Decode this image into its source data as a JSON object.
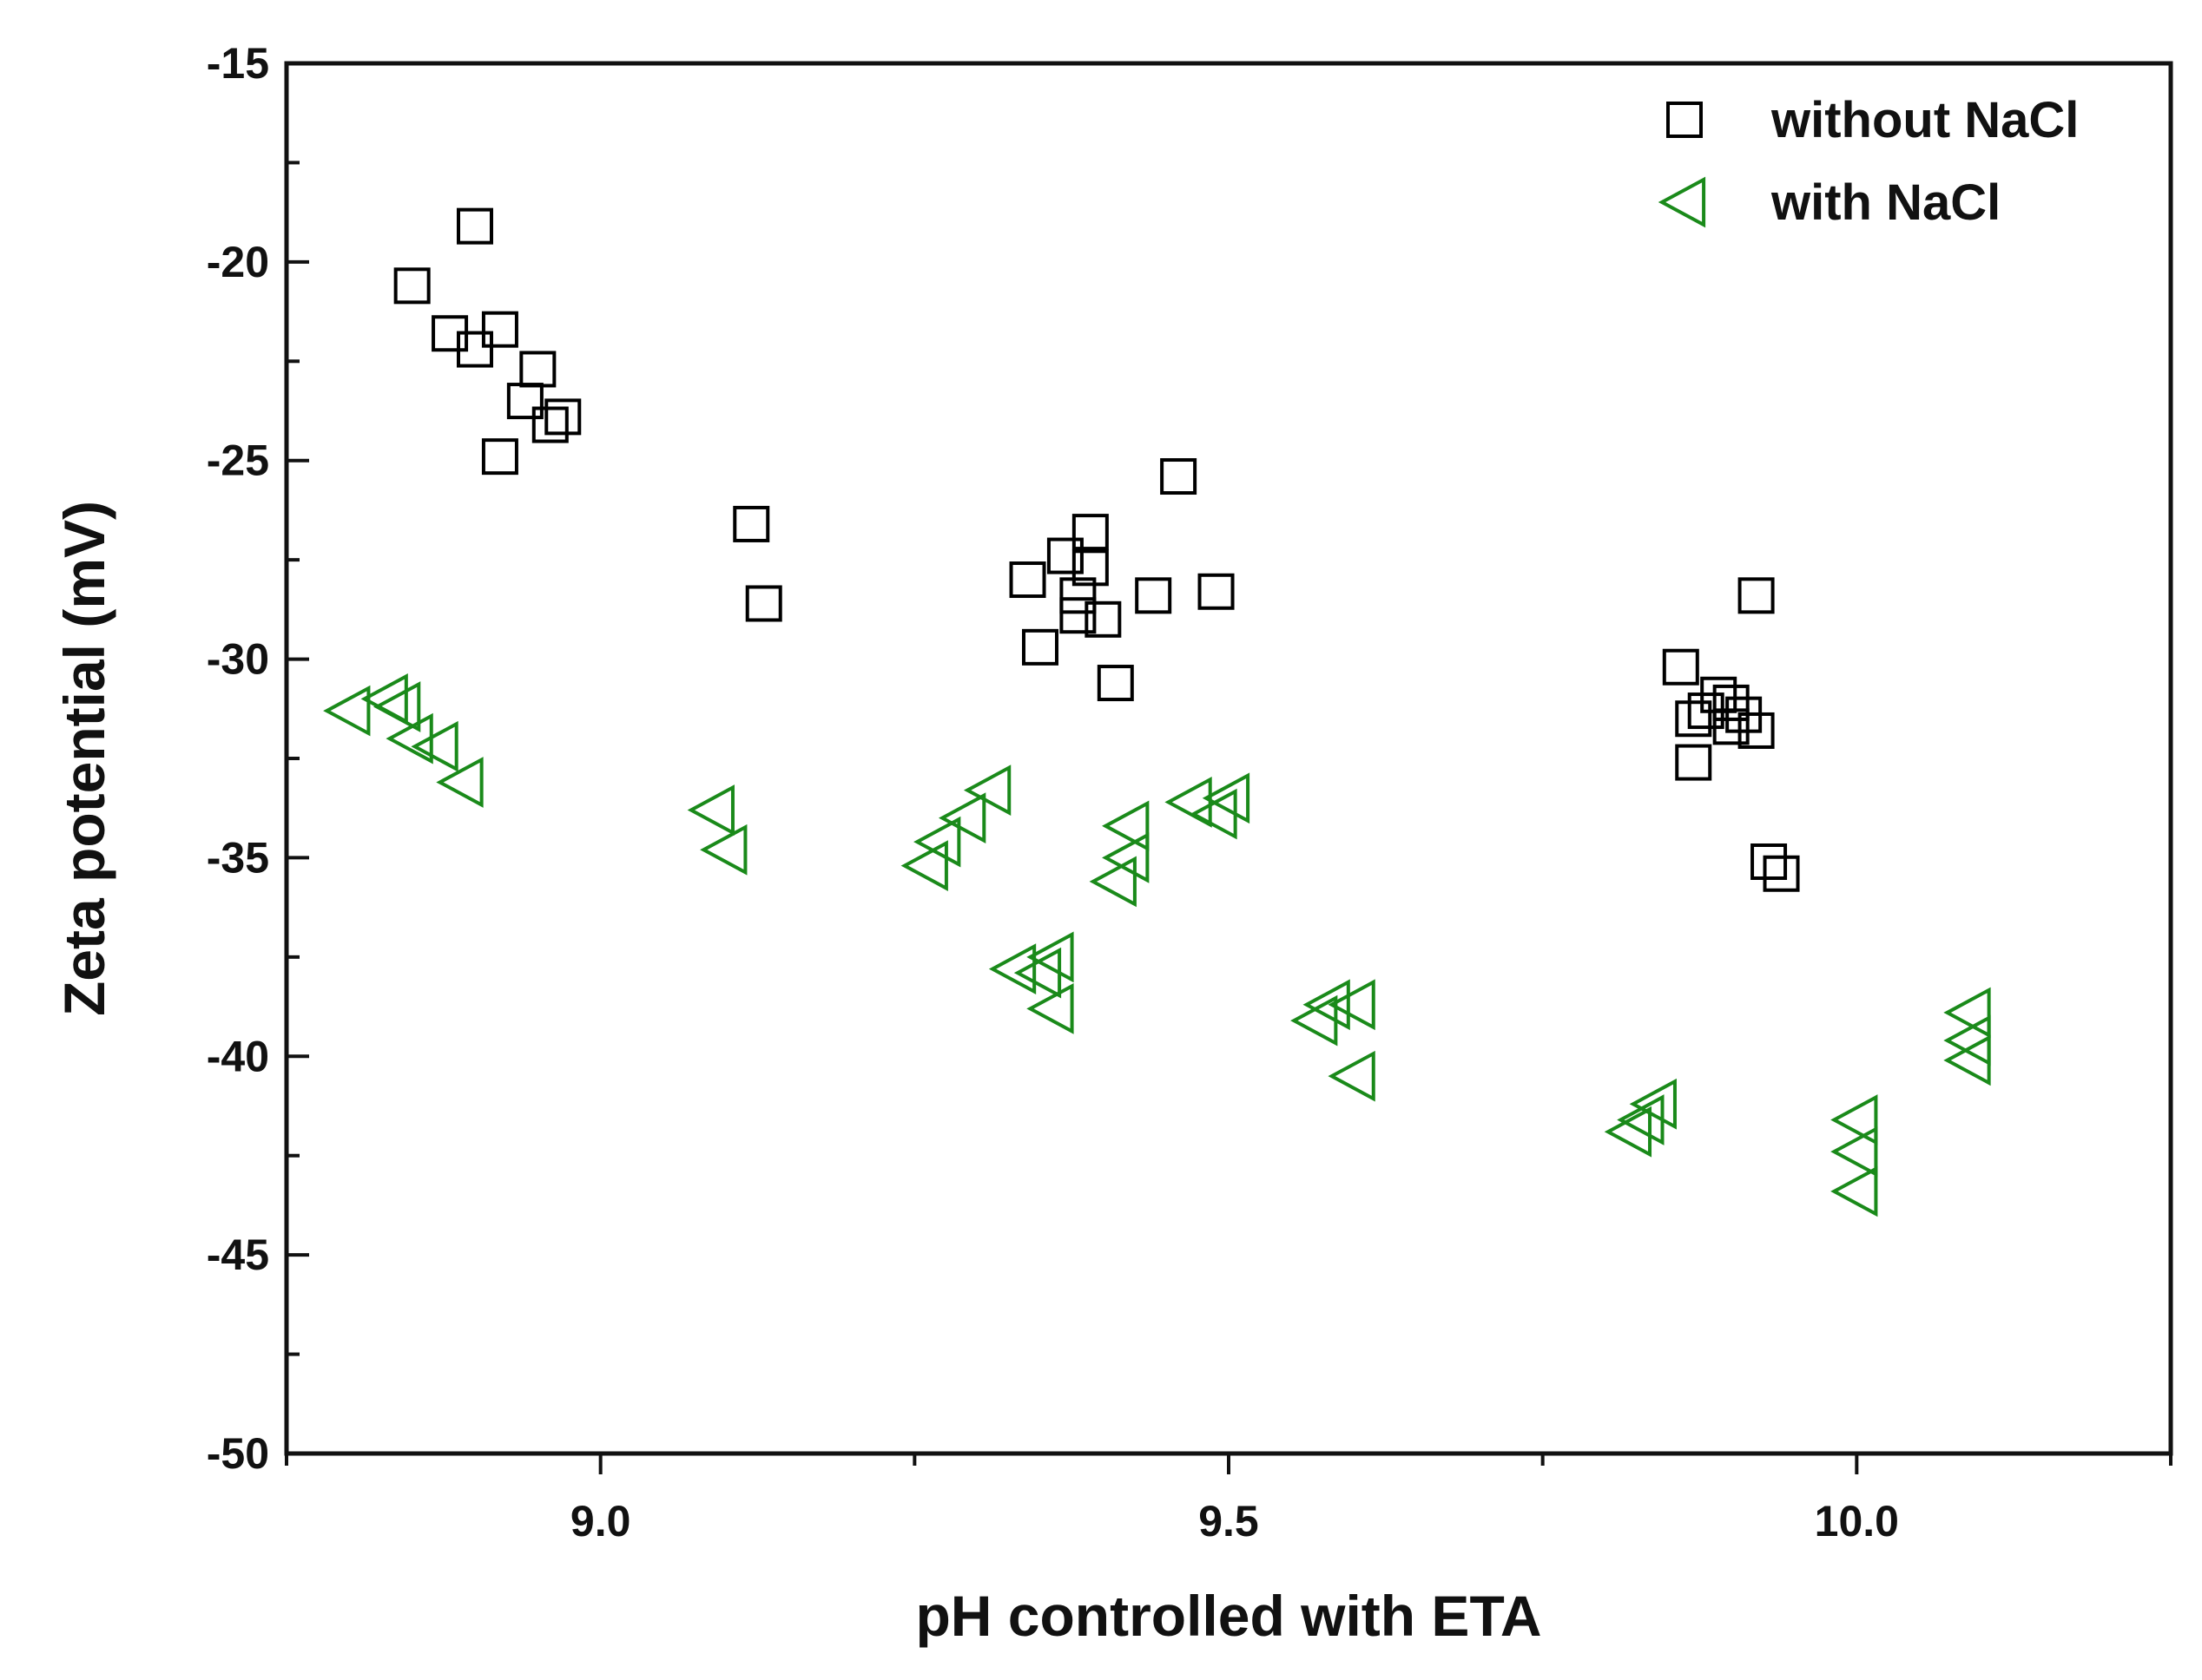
{
  "chart_data": {
    "type": "scatter",
    "xlabel": "pH controlled with ETA",
    "ylabel": "Zeta potential (mV)",
    "xlim": [
      8.75,
      10.25
    ],
    "ylim": [
      -50,
      -15
    ],
    "xticks": [
      9.0,
      9.5,
      10.0
    ],
    "xtick_labels": [
      "9.0",
      "9.5",
      "10.0"
    ],
    "yticks": [
      -15,
      -20,
      -25,
      -30,
      -35,
      -40,
      -45,
      -50
    ],
    "ytick_labels": [
      "-15",
      "-20",
      "-25",
      "-30",
      "-35",
      "-40",
      "-45",
      "-50"
    ],
    "legend_position": "top-right",
    "series": [
      {
        "name": "without NaCl",
        "marker": "square",
        "color": "#000000",
        "points": [
          {
            "x": 8.85,
            "y": -20.6
          },
          {
            "x": 8.9,
            "y": -19.1
          },
          {
            "x": 8.88,
            "y": -21.8
          },
          {
            "x": 8.9,
            "y": -22.2
          },
          {
            "x": 8.92,
            "y": -21.7
          },
          {
            "x": 8.95,
            "y": -22.7
          },
          {
            "x": 8.94,
            "y": -23.5
          },
          {
            "x": 8.97,
            "y": -23.9
          },
          {
            "x": 8.96,
            "y": -24.1
          },
          {
            "x": 8.92,
            "y": -24.9
          },
          {
            "x": 9.12,
            "y": -26.6
          },
          {
            "x": 9.13,
            "y": -28.6
          },
          {
            "x": 9.34,
            "y": -28.0
          },
          {
            "x": 9.35,
            "y": -29.7
          },
          {
            "x": 9.37,
            "y": -27.4
          },
          {
            "x": 9.38,
            "y": -28.4
          },
          {
            "x": 9.39,
            "y": -27.7
          },
          {
            "x": 9.39,
            "y": -26.8
          },
          {
            "x": 9.38,
            "y": -28.9
          },
          {
            "x": 9.4,
            "y": -29.0
          },
          {
            "x": 9.41,
            "y": -30.6
          },
          {
            "x": 9.44,
            "y": -28.4
          },
          {
            "x": 9.46,
            "y": -25.4
          },
          {
            "x": 9.49,
            "y": -28.3
          },
          {
            "x": 9.86,
            "y": -30.2
          },
          {
            "x": 9.87,
            "y": -31.5
          },
          {
            "x": 9.87,
            "y": -32.6
          },
          {
            "x": 9.88,
            "y": -31.3
          },
          {
            "x": 9.89,
            "y": -30.9
          },
          {
            "x": 9.9,
            "y": -31.1
          },
          {
            "x": 9.9,
            "y": -31.7
          },
          {
            "x": 9.91,
            "y": -31.4
          },
          {
            "x": 9.92,
            "y": -31.8
          },
          {
            "x": 9.92,
            "y": -28.4
          },
          {
            "x": 9.93,
            "y": -35.1
          },
          {
            "x": 9.94,
            "y": -35.4
          }
        ]
      },
      {
        "name": "with NaCl",
        "marker": "triangle-left",
        "color": "#1a8a1a",
        "points": [
          {
            "x": 8.8,
            "y": -31.3
          },
          {
            "x": 8.83,
            "y": -31.0
          },
          {
            "x": 8.84,
            "y": -31.2
          },
          {
            "x": 8.85,
            "y": -32.0
          },
          {
            "x": 8.87,
            "y": -32.2
          },
          {
            "x": 8.89,
            "y": -33.1
          },
          {
            "x": 9.09,
            "y": -33.8
          },
          {
            "x": 9.1,
            "y": -34.8
          },
          {
            "x": 9.26,
            "y": -35.2
          },
          {
            "x": 9.27,
            "y": -34.6
          },
          {
            "x": 9.29,
            "y": -34.0
          },
          {
            "x": 9.31,
            "y": -33.3
          },
          {
            "x": 9.33,
            "y": -37.8
          },
          {
            "x": 9.35,
            "y": -37.9
          },
          {
            "x": 9.36,
            "y": -37.5
          },
          {
            "x": 9.36,
            "y": -38.8
          },
          {
            "x": 9.41,
            "y": -35.6
          },
          {
            "x": 9.42,
            "y": -35.0
          },
          {
            "x": 9.42,
            "y": -34.2
          },
          {
            "x": 9.47,
            "y": -33.6
          },
          {
            "x": 9.49,
            "y": -33.9
          },
          {
            "x": 9.5,
            "y": -33.5
          },
          {
            "x": 9.57,
            "y": -39.1
          },
          {
            "x": 9.58,
            "y": -38.7
          },
          {
            "x": 9.6,
            "y": -38.7
          },
          {
            "x": 9.6,
            "y": -40.5
          },
          {
            "x": 9.82,
            "y": -41.9
          },
          {
            "x": 9.83,
            "y": -41.6
          },
          {
            "x": 9.84,
            "y": -41.2
          },
          {
            "x": 10.0,
            "y": -41.6
          },
          {
            "x": 10.0,
            "y": -42.4
          },
          {
            "x": 10.0,
            "y": -43.4
          },
          {
            "x": 10.09,
            "y": -38.9
          },
          {
            "x": 10.09,
            "y": -39.6
          },
          {
            "x": 10.09,
            "y": -40.1
          }
        ]
      }
    ]
  }
}
